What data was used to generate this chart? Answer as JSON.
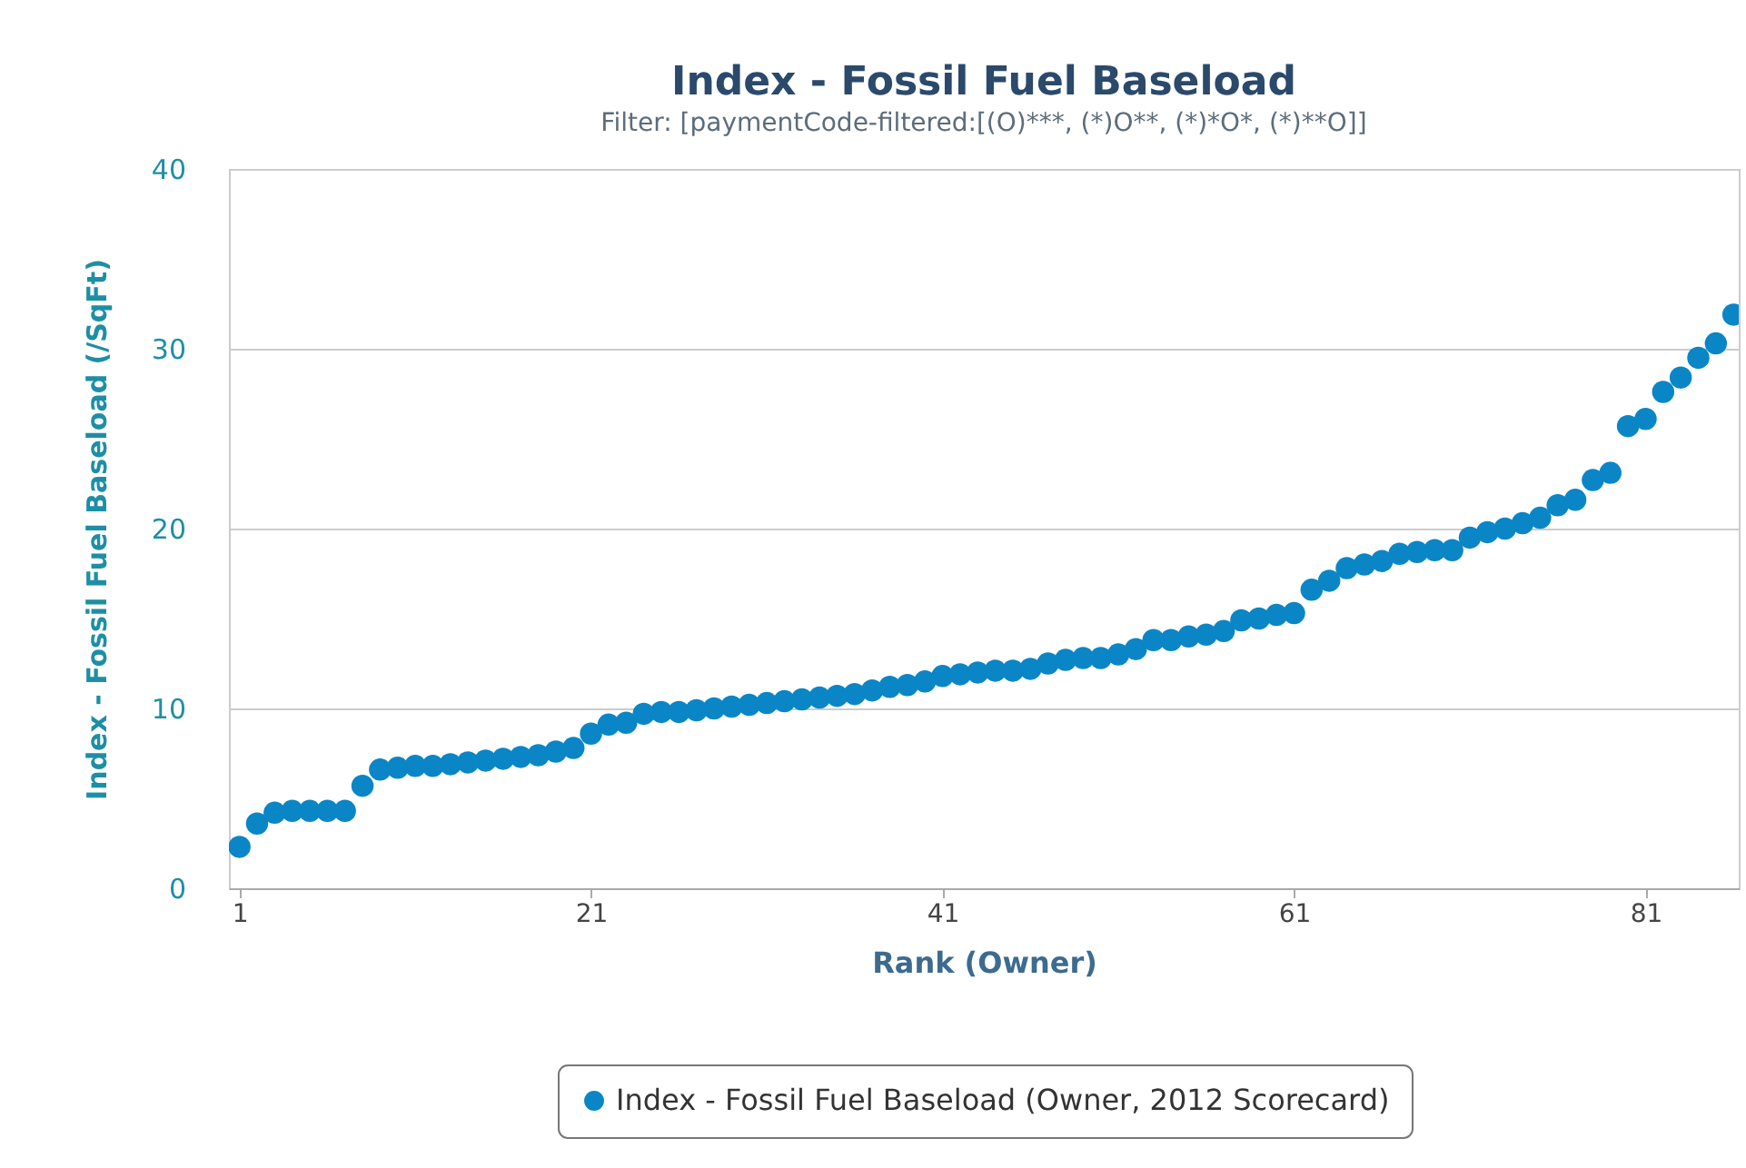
{
  "chart_data": {
    "type": "scatter",
    "title": "Index - Fossil Fuel Baseload",
    "subtitle": "Filter: [paymentCode-filtered:[(O)***, (*)O**, (*)*O*, (*)**O]]",
    "xlabel": "Rank (Owner)",
    "ylabel": "Index - Fossil Fuel Baseload (/SqFt)",
    "x": [
      1,
      2,
      3,
      4,
      5,
      6,
      7,
      8,
      9,
      10,
      11,
      12,
      13,
      14,
      15,
      16,
      17,
      18,
      19,
      20,
      21,
      22,
      23,
      24,
      25,
      26,
      27,
      28,
      29,
      30,
      31,
      32,
      33,
      34,
      35,
      36,
      37,
      38,
      39,
      40,
      41,
      42,
      43,
      44,
      45,
      46,
      47,
      48,
      49,
      50,
      51,
      52,
      53,
      54,
      55,
      56,
      57,
      58,
      59,
      60,
      61,
      62,
      63,
      64,
      65,
      66,
      67,
      68,
      69,
      70,
      71,
      72,
      73,
      74,
      75,
      76,
      77,
      78,
      79,
      80,
      81,
      82,
      83,
      84,
      85,
      86
    ],
    "series": [
      {
        "name": "Index - Fossil Fuel Baseload (Owner, 2012 Scorecard)",
        "color": "#0a86c6",
        "values": [
          2.3,
          3.6,
          4.2,
          4.3,
          4.3,
          4.3,
          4.3,
          5.7,
          6.6,
          6.7,
          6.8,
          6.8,
          6.9,
          7.0,
          7.1,
          7.2,
          7.3,
          7.4,
          7.6,
          7.8,
          8.6,
          9.1,
          9.2,
          9.7,
          9.8,
          9.8,
          9.9,
          10.0,
          10.1,
          10.2,
          10.3,
          10.4,
          10.5,
          10.6,
          10.7,
          10.8,
          11.0,
          11.2,
          11.3,
          11.5,
          11.8,
          11.9,
          12.0,
          12.1,
          12.1,
          12.2,
          12.5,
          12.7,
          12.8,
          12.8,
          13.0,
          13.3,
          13.8,
          13.8,
          14.0,
          14.1,
          14.3,
          14.9,
          15.0,
          15.2,
          15.3,
          16.6,
          17.1,
          17.8,
          18.0,
          18.2,
          18.6,
          18.7,
          18.8,
          18.8,
          19.5,
          19.8,
          20.0,
          20.3,
          20.6,
          21.3,
          21.6,
          22.7,
          23.1,
          25.7,
          26.1,
          27.6,
          28.4,
          29.5,
          30.3,
          31.9
        ]
      }
    ],
    "xlim": [
      0.4,
      86.3
    ],
    "xticks": [
      1,
      21,
      41,
      61,
      81
    ],
    "ylim": [
      0,
      40
    ],
    "yticks": [
      0,
      10,
      20,
      30,
      40
    ],
    "grid": "y",
    "legend": "bottom",
    "marker": "circle"
  }
}
